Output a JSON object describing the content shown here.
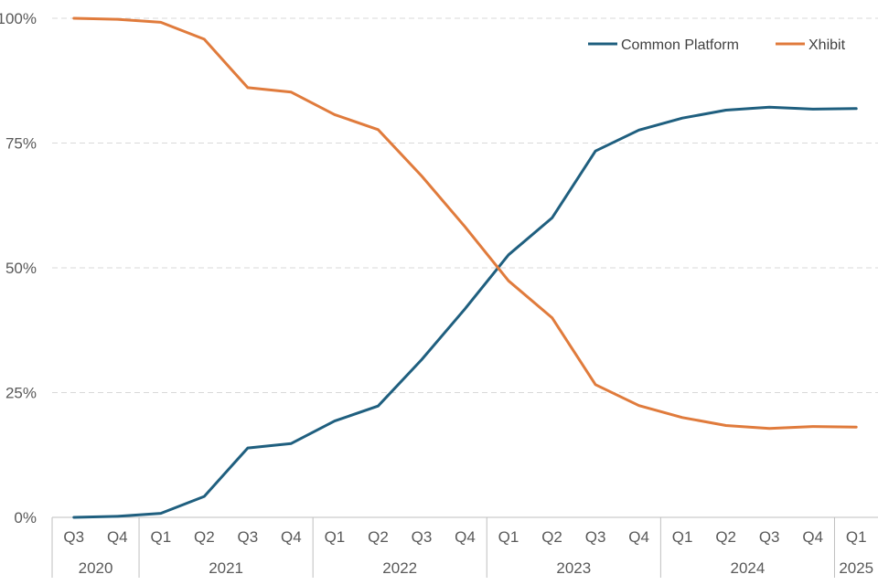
{
  "chart_data": {
    "type": "line",
    "title": "",
    "xlabel": "",
    "ylabel": "",
    "ylim": [
      0,
      100
    ],
    "y_ticks": [
      {
        "value": 0,
        "label": "0%"
      },
      {
        "value": 25,
        "label": "25%"
      },
      {
        "value": 50,
        "label": "50%"
      },
      {
        "value": 75,
        "label": "75%"
      },
      {
        "value": 100,
        "label": "100%"
      }
    ],
    "grid": "horizontal dashed",
    "legend_position": "top-right",
    "categories": [
      "Q3",
      "Q4",
      "Q1",
      "Q2",
      "Q3",
      "Q4",
      "Q1",
      "Q2",
      "Q3",
      "Q4",
      "Q1",
      "Q2",
      "Q3",
      "Q4",
      "Q1",
      "Q2",
      "Q3",
      "Q4",
      "Q1"
    ],
    "year_groups": [
      {
        "label": "2020",
        "count": 2
      },
      {
        "label": "2021",
        "count": 4
      },
      {
        "label": "2022",
        "count": 4
      },
      {
        "label": "2023",
        "count": 4
      },
      {
        "label": "2024",
        "count": 4
      },
      {
        "label": "2025",
        "count": 1
      }
    ],
    "series": [
      {
        "name": "Common Platform",
        "color": "#1f5f7f",
        "values": [
          0,
          0.2,
          0.8,
          4.2,
          13.9,
          14.8,
          19.3,
          22.3,
          31.6,
          41.8,
          52.6,
          60.0,
          73.4,
          77.6,
          80.0,
          81.6,
          82.2,
          81.8,
          81.9
        ]
      },
      {
        "name": "Xhibit",
        "color": "#e07b3c",
        "values": [
          100,
          99.8,
          99.2,
          95.8,
          86.1,
          85.2,
          80.7,
          77.7,
          68.4,
          58.2,
          47.4,
          40.0,
          26.6,
          22.4,
          20.0,
          18.4,
          17.8,
          18.2,
          18.1
        ]
      }
    ]
  }
}
